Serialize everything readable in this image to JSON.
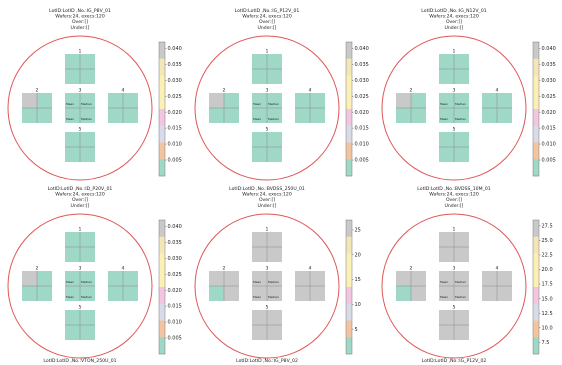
{
  "colors": {
    "wafer_edge": "#e05555",
    "frame": "#7a7a7a",
    "colormap": [
      "#9fd8c6",
      "#f3c4a0",
      "#d9dbe8",
      "#f2c6df",
      "#fbf0b6",
      "#fbf0b6",
      "#f3e6b7",
      "#c9c9c9"
    ]
  },
  "chart_data": [
    {
      "type": "heatmap",
      "title_lines": [
        "LotID:LotID ,No.:IG_P8V_01",
        "Wafers:24, execs:120",
        "Over:[]",
        "Under:[]"
      ],
      "colorbar": {
        "ticks": [
          "0.040",
          "0.035",
          "0.030",
          "0.025",
          "0.020",
          "0.015",
          "0.010",
          "0.005"
        ],
        "range": [
          0,
          0.042
        ]
      },
      "sites": [
        {
          "label": "1",
          "quads": [
            "low",
            "low",
            "low",
            "low"
          ]
        },
        {
          "label": "2",
          "quads": [
            "grey",
            "low",
            "low",
            "low"
          ]
        },
        {
          "label": "3",
          "quads": [
            "low",
            "low",
            "low",
            "low"
          ],
          "stats": [
            "Mean",
            "Median",
            "Mean",
            "Median"
          ]
        },
        {
          "label": "4",
          "quads": [
            "low",
            "low",
            "low",
            "low"
          ]
        },
        {
          "label": "5",
          "quads": [
            "low",
            "low",
            "low",
            "low"
          ]
        }
      ]
    },
    {
      "type": "heatmap",
      "title_lines": [
        "LotID:LotID ,No.:IG_P12V_01",
        "Wafers:24, execs:120",
        "Over:[]",
        "Under:[]"
      ],
      "colorbar": {
        "ticks": [
          "0.040",
          "0.035",
          "0.030",
          "0.025",
          "0.020",
          "0.015",
          "0.010",
          "0.005"
        ],
        "range": [
          0,
          0.042
        ]
      },
      "sites": [
        {
          "label": "1",
          "quads": [
            "low",
            "low",
            "low",
            "low"
          ]
        },
        {
          "label": "2",
          "quads": [
            "grey",
            "low",
            "low",
            "low"
          ]
        },
        {
          "label": "3",
          "quads": [
            "low",
            "low",
            "low",
            "low"
          ],
          "stats": [
            "Mean",
            "Median",
            "Mean",
            "Median"
          ]
        },
        {
          "label": "4",
          "quads": [
            "low",
            "low",
            "low",
            "low"
          ]
        },
        {
          "label": "5",
          "quads": [
            "low",
            "low",
            "low",
            "low"
          ]
        }
      ]
    },
    {
      "type": "heatmap",
      "title_lines": [
        "LotID:LotID ,No.:IG_N12V_01",
        "Wafers:24, execs:120",
        "Over:[]",
        "Under:[]"
      ],
      "colorbar": {
        "ticks": [
          "0.040",
          "0.035",
          "0.030",
          "0.025",
          "0.020",
          "0.015",
          "0.010",
          "0.005"
        ],
        "range": [
          0,
          0.042
        ]
      },
      "sites": [
        {
          "label": "1",
          "quads": [
            "low",
            "low",
            "low",
            "low"
          ]
        },
        {
          "label": "2",
          "quads": [
            "grey",
            "low",
            "low",
            "low"
          ]
        },
        {
          "label": "3",
          "quads": [
            "low",
            "low",
            "low",
            "low"
          ],
          "stats": [
            "Mean",
            "Median",
            "Mean",
            "Median"
          ]
        },
        {
          "label": "4",
          "quads": [
            "low",
            "low",
            "low",
            "low"
          ]
        },
        {
          "label": "5",
          "quads": [
            "low",
            "low",
            "low",
            "low"
          ]
        }
      ]
    },
    {
      "type": "heatmap",
      "title_lines": [
        "LotID:LotID ,No.:ID_P20V_01",
        "Wafers:24, execs:120",
        "Over:[]",
        "Under:[]"
      ],
      "colorbar": {
        "ticks": [
          "0.040",
          "0.035",
          "0.030",
          "0.025",
          "0.020",
          "0.015",
          "0.010",
          "0.005"
        ],
        "range": [
          0,
          0.042
        ]
      },
      "sites": [
        {
          "label": "1",
          "quads": [
            "low",
            "low",
            "low",
            "low"
          ]
        },
        {
          "label": "2",
          "quads": [
            "grey",
            "low",
            "low",
            "low"
          ]
        },
        {
          "label": "3",
          "quads": [
            "low",
            "low",
            "low",
            "low"
          ],
          "stats": [
            "Mean",
            "Median",
            "Mean",
            "Median"
          ]
        },
        {
          "label": "4",
          "quads": [
            "low",
            "low",
            "low",
            "low"
          ]
        },
        {
          "label": "5",
          "quads": [
            "low",
            "low",
            "low",
            "low"
          ]
        }
      ],
      "bottom_caption": "LotID:LotID ,No.:VTON_250U_01"
    },
    {
      "type": "heatmap",
      "title_lines": [
        "LotID:LotID ,No.:BVDSS_250U_01",
        "Wafers:24, execs:120",
        "Over:[]",
        "Under:[]"
      ],
      "colorbar": {
        "ticks": [
          "25",
          "20",
          "15",
          "10",
          "5"
        ],
        "range": [
          0,
          27
        ]
      },
      "sites": [
        {
          "label": "1",
          "quads": [
            "grey",
            "grey",
            "grey",
            "grey"
          ]
        },
        {
          "label": "2",
          "quads": [
            "grey",
            "grey",
            "low",
            "grey"
          ]
        },
        {
          "label": "3",
          "quads": [
            "grey",
            "grey",
            "grey",
            "grey"
          ],
          "stats": [
            "Mean",
            "Median",
            "Mean",
            "Median"
          ]
        },
        {
          "label": "4",
          "quads": [
            "grey",
            "grey",
            "grey",
            "grey"
          ]
        },
        {
          "label": "5",
          "quads": [
            "grey",
            "grey",
            "grey",
            "grey"
          ]
        }
      ],
      "bottom_caption": "LotID:LotID ,No.:IG_P8V_02"
    },
    {
      "type": "heatmap",
      "title_lines": [
        "LotID:LotID ,No.:BVDSS_10M_01",
        "Wafers:24, execs:120",
        "Over:[]",
        "Under:[]"
      ],
      "colorbar": {
        "ticks": [
          "27.5",
          "25.0",
          "22.5",
          "20.0",
          "17.5",
          "15.0",
          "12.5",
          "10.0",
          "7.5"
        ],
        "range": [
          5.5,
          28.5
        ]
      },
      "sites": [
        {
          "label": "1",
          "quads": [
            "grey",
            "grey",
            "grey",
            "grey"
          ]
        },
        {
          "label": "2",
          "quads": [
            "grey",
            "grey",
            "low",
            "grey"
          ]
        },
        {
          "label": "3",
          "quads": [
            "grey",
            "grey",
            "grey",
            "grey"
          ],
          "stats": [
            "Mean",
            "Median",
            "Mean",
            "Median"
          ]
        },
        {
          "label": "4",
          "quads": [
            "grey",
            "grey",
            "grey",
            "grey"
          ]
        },
        {
          "label": "5",
          "quads": [
            "grey",
            "grey",
            "grey",
            "grey"
          ]
        }
      ],
      "bottom_caption": "LotID:LotID ,No.:IG_P12V_02"
    }
  ]
}
